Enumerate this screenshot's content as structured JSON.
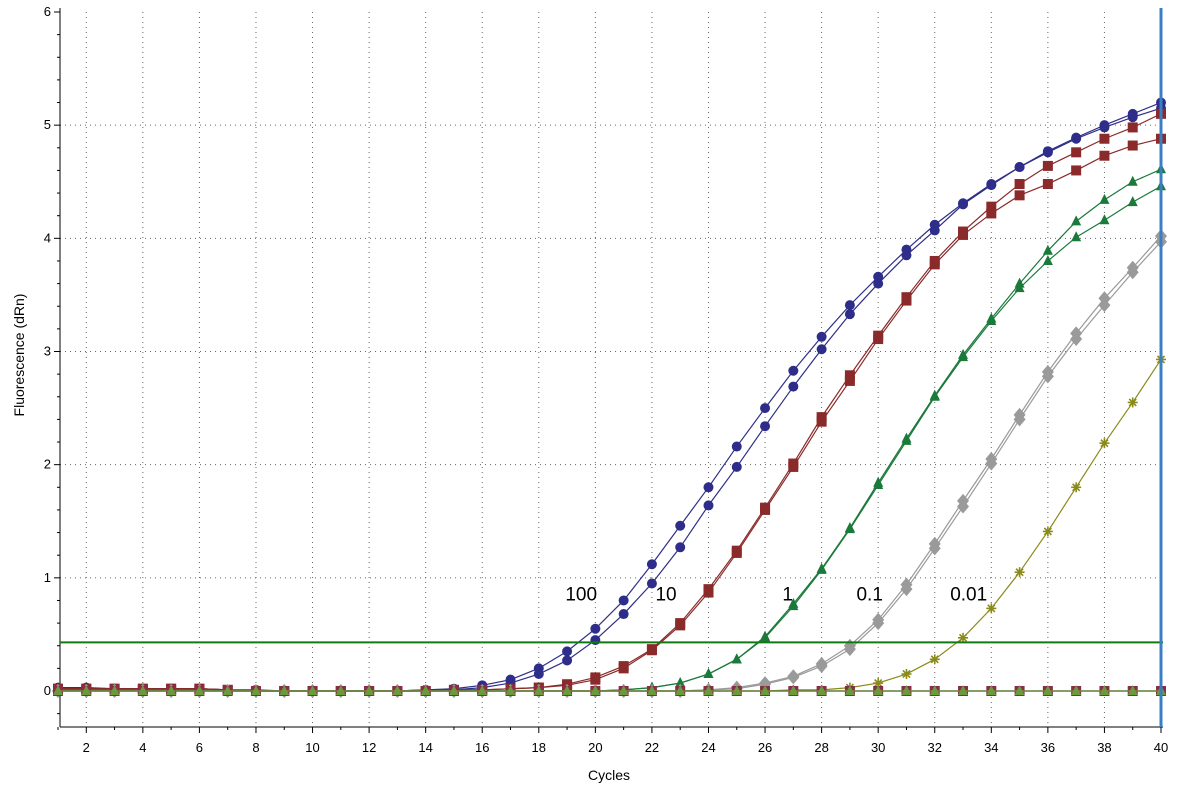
{
  "chart_data": {
    "type": "scatter",
    "xlabel": "Cycles",
    "ylabel": "Fluorescence (dRn)",
    "xlim": [
      1,
      40
    ],
    "ylim": [
      -0.3,
      6
    ],
    "x_ticks": [
      2,
      4,
      6,
      8,
      10,
      12,
      14,
      16,
      18,
      20,
      22,
      24,
      26,
      28,
      30,
      32,
      34,
      36,
      38,
      40
    ],
    "y_ticks": [
      0,
      1,
      2,
      3,
      4,
      5,
      6
    ],
    "grid": true,
    "threshold": {
      "y": 0.43,
      "color": "#127a12"
    },
    "cursor": {
      "x": 40,
      "color": "#3a7fc4"
    },
    "annotations": [
      {
        "text": "100",
        "x": 19.5,
        "y": 0.8
      },
      {
        "text": "10",
        "x": 22.5,
        "y": 0.8
      },
      {
        "text": "1",
        "x": 26.8,
        "y": 0.8
      },
      {
        "text": "0.1",
        "x": 29.7,
        "y": 0.8
      },
      {
        "text": "0.01",
        "x": 33.2,
        "y": 0.8
      }
    ],
    "x": [
      1,
      2,
      3,
      4,
      5,
      6,
      7,
      8,
      9,
      10,
      11,
      12,
      13,
      14,
      15,
      16,
      17,
      18,
      19,
      20,
      21,
      22,
      23,
      24,
      25,
      26,
      27,
      28,
      29,
      30,
      31,
      32,
      33,
      34,
      35,
      36,
      37,
      38,
      39,
      40
    ],
    "series": [
      {
        "color": "#2e2e8a",
        "marker": "circle",
        "values": [
          0.03,
          0.03,
          0.02,
          0.02,
          0.02,
          0.02,
          0.01,
          0.01,
          0,
          0,
          0,
          0,
          0,
          0.01,
          0.02,
          0.05,
          0.1,
          0.2,
          0.35,
          0.55,
          0.8,
          1.12,
          1.46,
          1.8,
          2.16,
          2.5,
          2.83,
          3.13,
          3.41,
          3.66,
          3.9,
          4.12,
          4.31,
          4.48,
          4.63,
          4.77,
          4.89,
          5,
          5.1,
          5.2
        ]
      },
      {
        "color": "#2e2e8a",
        "marker": "circle",
        "values": [
          0.02,
          0.02,
          0.02,
          0.02,
          0.02,
          0.02,
          0.01,
          0,
          0,
          0,
          0,
          0,
          0,
          0.01,
          0.01,
          0.03,
          0.07,
          0.15,
          0.27,
          0.45,
          0.68,
          0.95,
          1.27,
          1.64,
          1.98,
          2.34,
          2.69,
          3.02,
          3.33,
          3.6,
          3.85,
          4.07,
          4.3,
          4.47,
          4.63,
          4.76,
          4.88,
          4.98,
          5.07,
          5.15
        ]
      },
      {
        "color": "#8b2a2a",
        "marker": "square",
        "values": [
          0.02,
          0.02,
          0.02,
          0.02,
          0.02,
          0.02,
          0.01,
          0,
          0,
          0,
          0,
          0,
          0,
          0,
          0.01,
          0.01,
          0.02,
          0.03,
          0.06,
          0.12,
          0.22,
          0.37,
          0.6,
          0.9,
          1.24,
          1.62,
          2.01,
          2.42,
          2.79,
          3.14,
          3.48,
          3.8,
          4.06,
          4.28,
          4.48,
          4.64,
          4.76,
          4.88,
          4.98,
          5.1
        ]
      },
      {
        "color": "#8b2a2a",
        "marker": "square",
        "values": [
          0.02,
          0.02,
          0.02,
          0.02,
          0.02,
          0.02,
          0.01,
          0,
          0,
          0,
          0,
          0,
          0,
          0,
          0.01,
          0.01,
          0.02,
          0.03,
          0.05,
          0.1,
          0.2,
          0.36,
          0.58,
          0.87,
          1.22,
          1.6,
          1.98,
          2.38,
          2.74,
          3.11,
          3.45,
          3.77,
          4.03,
          4.22,
          4.38,
          4.48,
          4.6,
          4.73,
          4.82,
          4.88
        ]
      },
      {
        "color": "#1a7a3a",
        "marker": "triangle",
        "values": [
          0.01,
          0.01,
          0.01,
          0.01,
          0.01,
          0.01,
          0,
          0,
          0,
          0,
          0,
          0,
          0,
          0,
          0,
          0,
          0,
          0,
          0,
          0,
          0.01,
          0.03,
          0.07,
          0.15,
          0.28,
          0.48,
          0.77,
          1.08,
          1.44,
          1.84,
          2.23,
          2.61,
          2.97,
          3.29,
          3.6,
          3.89,
          4.15,
          4.34,
          4.5,
          4.61
        ]
      },
      {
        "color": "#1a7a3a",
        "marker": "triangle",
        "values": [
          0.01,
          0.01,
          0.01,
          0.01,
          0.01,
          0.01,
          0,
          0,
          0,
          0,
          0,
          0,
          0,
          0,
          0,
          0,
          0,
          0,
          0,
          0,
          0.01,
          0.03,
          0.07,
          0.15,
          0.28,
          0.47,
          0.75,
          1.07,
          1.43,
          1.82,
          2.21,
          2.6,
          2.95,
          3.27,
          3.56,
          3.8,
          4.01,
          4.16,
          4.32,
          4.46
        ]
      },
      {
        "color": "#9a9a9a",
        "marker": "diamond",
        "values": [
          0,
          0,
          0,
          0,
          0,
          0,
          0,
          0,
          0,
          0,
          0,
          0,
          0,
          0,
          0,
          0,
          0,
          0,
          0,
          0,
          0,
          0,
          0,
          0.01,
          0.03,
          0.07,
          0.13,
          0.24,
          0.4,
          0.63,
          0.94,
          1.3,
          1.68,
          2.05,
          2.44,
          2.82,
          3.16,
          3.47,
          3.74,
          4.02
        ]
      },
      {
        "color": "#9a9a9a",
        "marker": "diamond",
        "values": [
          0,
          0,
          0,
          0,
          0,
          0,
          0,
          0,
          0,
          0,
          0,
          0,
          0,
          0,
          0,
          0,
          0,
          0,
          0,
          0,
          0,
          0,
          0,
          0.01,
          0.02,
          0.06,
          0.12,
          0.22,
          0.37,
          0.6,
          0.9,
          1.26,
          1.63,
          2.01,
          2.4,
          2.78,
          3.11,
          3.41,
          3.7,
          3.97
        ]
      },
      {
        "color": "#8a8a1a",
        "marker": "asterisk",
        "values": [
          0,
          0,
          0,
          0,
          0,
          0,
          0,
          0,
          0,
          0,
          0,
          0,
          0,
          0,
          0,
          0,
          0,
          0,
          0,
          0,
          0,
          0,
          0,
          0,
          0,
          0,
          0.01,
          0.01,
          0.03,
          0.07,
          0.15,
          0.28,
          0.47,
          0.73,
          1.05,
          1.41,
          1.8,
          2.19,
          2.55,
          2.93
        ]
      },
      {
        "color": "#3a3a8a",
        "marker": "circle",
        "values": [
          0,
          0,
          0,
          0,
          0,
          0,
          0,
          0,
          0,
          0,
          0,
          0,
          0,
          0,
          0,
          0,
          0,
          0,
          0,
          0,
          0,
          0,
          0,
          0,
          0,
          0,
          0,
          0,
          0,
          0,
          0,
          0,
          0,
          0,
          0,
          0,
          0,
          0,
          0,
          0
        ]
      },
      {
        "color": "#8b2a4a",
        "marker": "square",
        "values": [
          0,
          0,
          0,
          0,
          0,
          0,
          0,
          0,
          0,
          0,
          0,
          0,
          0,
          0,
          0,
          0,
          0,
          0,
          0,
          0,
          0,
          0,
          0,
          0,
          0,
          0,
          0,
          0,
          0,
          0,
          0,
          0,
          0,
          0,
          0,
          0,
          0,
          0,
          0,
          0
        ]
      },
      {
        "color": "#6a9a3a",
        "marker": "triangle",
        "values": [
          0,
          0,
          0,
          0,
          0,
          0,
          0,
          0,
          0,
          0,
          0,
          0,
          0,
          0,
          0,
          0,
          0,
          0,
          0,
          0,
          0,
          0,
          0,
          0,
          0,
          0,
          0,
          0,
          0,
          0,
          0,
          0,
          0,
          0,
          0,
          0,
          0,
          0,
          0,
          0
        ]
      }
    ]
  }
}
